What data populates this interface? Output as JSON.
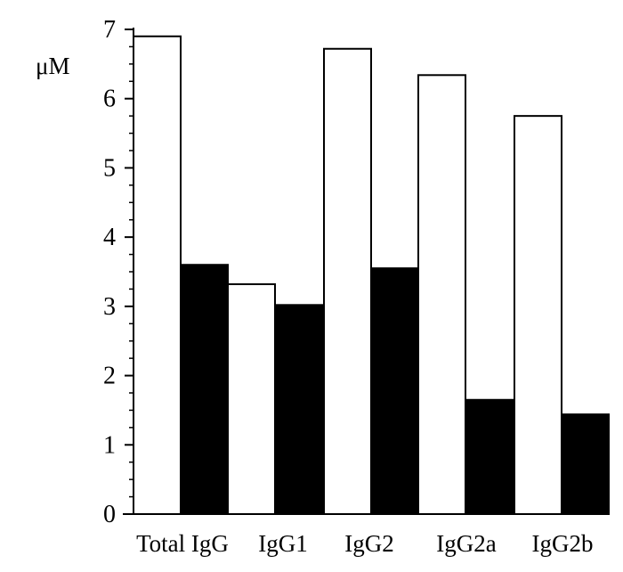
{
  "chart_data": {
    "type": "bar",
    "title": "",
    "xlabel": "",
    "ylabel": "μM",
    "ylim": [
      0,
      7
    ],
    "yticks": [
      0,
      1,
      2,
      3,
      4,
      5,
      6,
      7
    ],
    "grid": false,
    "categories": [
      "Total IgG",
      "IgG1",
      "IgG2",
      "IgG2a",
      "IgG2b"
    ],
    "series": [
      {
        "values": [
          6.9,
          3.32,
          6.72,
          6.34,
          5.75
        ],
        "color": "#ffffff"
      },
      {
        "values": [
          3.6,
          3.02,
          3.55,
          1.65,
          1.44
        ],
        "color": "#000000"
      }
    ]
  }
}
